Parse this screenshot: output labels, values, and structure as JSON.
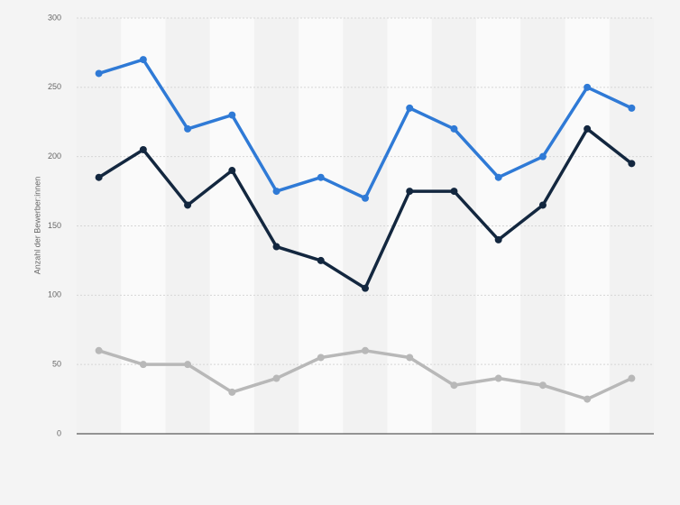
{
  "chart_data": {
    "type": "line",
    "y_label": "Anzahl der Bewerber:innen",
    "categories": [
      null,
      null,
      null,
      null,
      null,
      null,
      null,
      null,
      null,
      null,
      null,
      null,
      null
    ],
    "series": [
      {
        "color": "#2f7ad6",
        "values": [
          260,
          270,
          220,
          230,
          175,
          185,
          170,
          235,
          220,
          185,
          200,
          250,
          235
        ]
      },
      {
        "color": "#13273f",
        "values": [
          185,
          205,
          165,
          190,
          135,
          125,
          105,
          175,
          175,
          140,
          165,
          220,
          195
        ]
      },
      {
        "color": "#b8b8b8",
        "values": [
          60,
          50,
          50,
          30,
          40,
          55,
          60,
          55,
          35,
          40,
          35,
          25,
          40
        ]
      }
    ],
    "ylim": [
      0,
      300
    ],
    "yticks": [
      0,
      50,
      100,
      150,
      200,
      250,
      300
    ],
    "grid": true
  }
}
